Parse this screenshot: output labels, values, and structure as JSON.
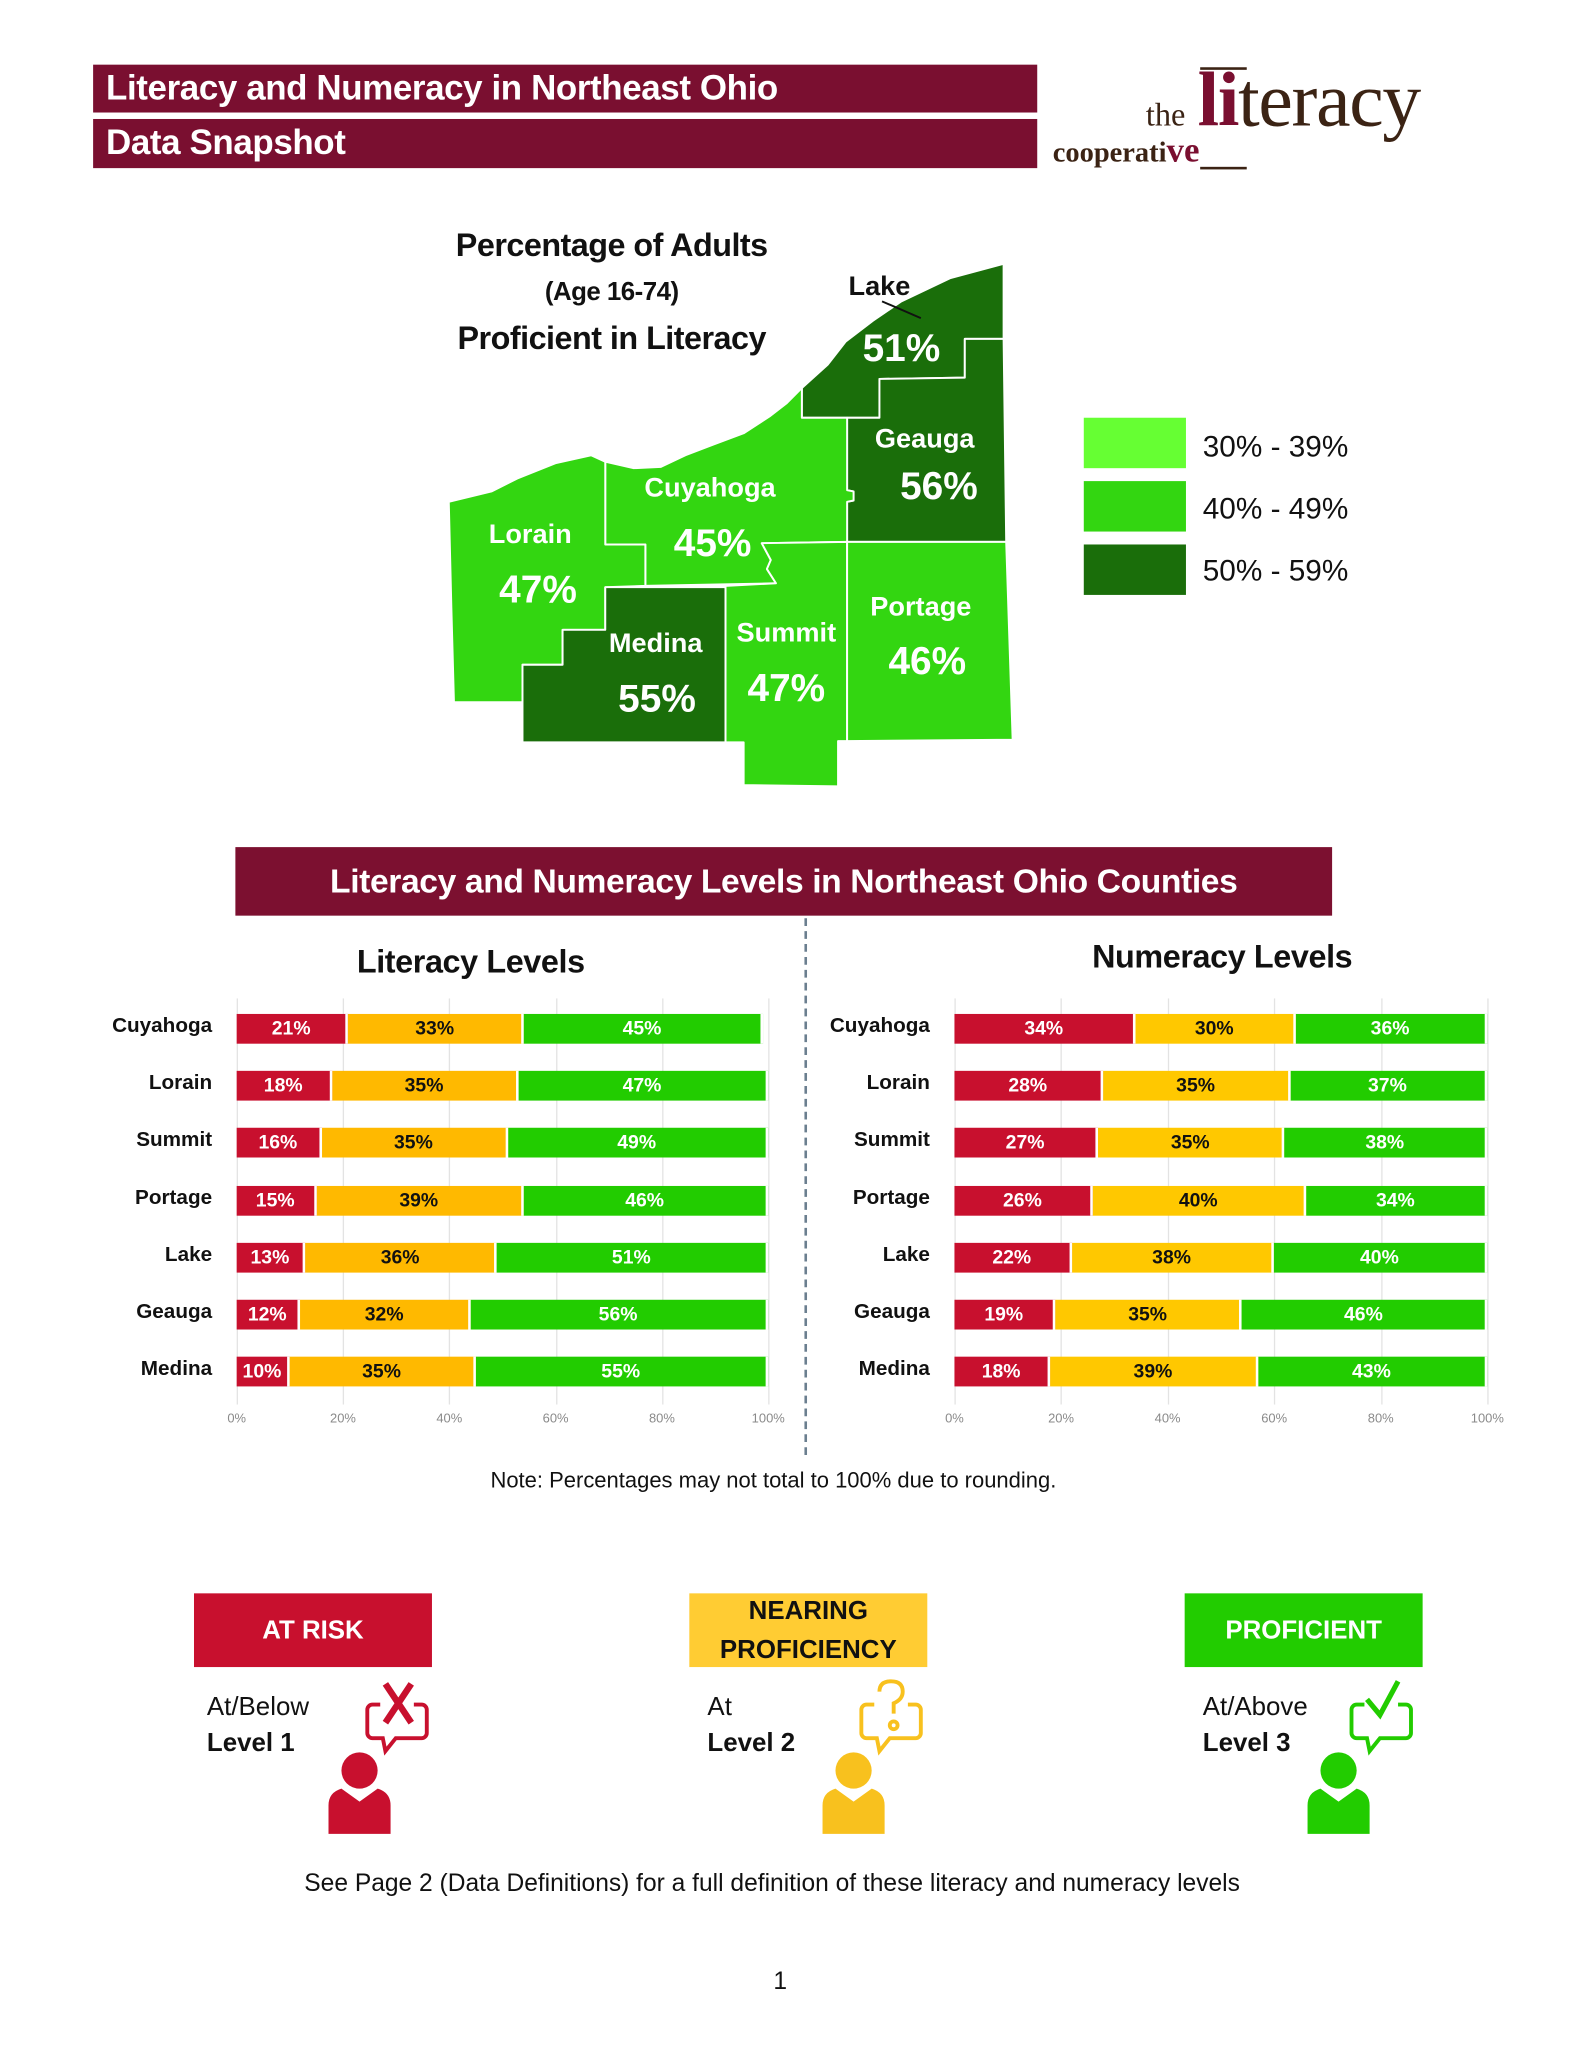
{
  "header": {
    "title": "Literacy and Numeracy in Northeast Ohio",
    "subtitle": "Data Snapshot",
    "brand_color": "#7a0f30"
  },
  "logo": {
    "the": "the",
    "li": "li",
    "teracy": "teracy",
    "cooperati": "cooperati",
    "ve": "ve"
  },
  "map": {
    "title_line1": "Percentage of Adults",
    "title_line2": "(Age 16-74)",
    "title_line3": "Proficient in Literacy",
    "counties": [
      {
        "name": "Lake",
        "pct": "51%",
        "band": 2
      },
      {
        "name": "Geauga",
        "pct": "56%",
        "band": 2
      },
      {
        "name": "Cuyahoga",
        "pct": "45%",
        "band": 1
      },
      {
        "name": "Lorain",
        "pct": "47%",
        "band": 1
      },
      {
        "name": "Medina",
        "pct": "55%",
        "band": 2
      },
      {
        "name": "Summit",
        "pct": "47%",
        "band": 1
      },
      {
        "name": "Portage",
        "pct": "46%",
        "band": 1
      }
    ],
    "legend": [
      {
        "label": "30% - 39%",
        "color": "#66ff33"
      },
      {
        "label": "40% - 49%",
        "color": "#33d611"
      },
      {
        "label": "50% - 59%",
        "color": "#1a6e0a"
      }
    ]
  },
  "banner": "Literacy and Numeracy Levels in Northeast Ohio Counties",
  "chart_data": [
    {
      "type": "bar",
      "stacked": true,
      "orientation": "horizontal",
      "title": "Literacy Levels",
      "categories": [
        "Cuyahoga",
        "Lorain",
        "Summit",
        "Portage",
        "Lake",
        "Geauga",
        "Medina"
      ],
      "series": [
        {
          "values": [
            21,
            18,
            16,
            15,
            13,
            12,
            10
          ],
          "color": "#c8102e",
          "text_color": "#ffffff"
        },
        {
          "values": [
            33,
            35,
            35,
            39,
            36,
            32,
            35
          ],
          "color": "#ffb900",
          "text_color": "#111111"
        },
        {
          "values": [
            45,
            47,
            49,
            46,
            51,
            56,
            55
          ],
          "color": "#22cc00",
          "text_color": "#ffffff"
        }
      ],
      "xlim": [
        0,
        100
      ],
      "xticks": [
        "0%",
        "20%",
        "40%",
        "60%",
        "80%",
        "100%"
      ],
      "grid": true
    },
    {
      "type": "bar",
      "stacked": true,
      "orientation": "horizontal",
      "title": "Numeracy Levels",
      "categories": [
        "Cuyahoga",
        "Lorain",
        "Summit",
        "Portage",
        "Lake",
        "Geauga",
        "Medina"
      ],
      "series": [
        {
          "values": [
            34,
            28,
            27,
            26,
            22,
            19,
            18
          ],
          "color": "#c8102e",
          "text_color": "#ffffff"
        },
        {
          "values": [
            30,
            35,
            35,
            40,
            38,
            35,
            39
          ],
          "color": "#ffc800",
          "text_color": "#111111"
        },
        {
          "values": [
            36,
            37,
            38,
            34,
            40,
            46,
            43
          ],
          "color": "#22cc00",
          "text_color": "#ffffff"
        }
      ],
      "xlim": [
        0,
        100
      ],
      "xticks": [
        "0%",
        "20%",
        "40%",
        "60%",
        "80%",
        "100%"
      ],
      "grid": true
    }
  ],
  "note": "Note: Percentages may not total to 100% due to rounding.",
  "levels": [
    {
      "label": "AT RISK",
      "desc1": "At/Below",
      "desc2": "Level 1",
      "color": "#c8102e",
      "icon": "x-speech-bubble-icon"
    },
    {
      "label": "NEARING PROFICIENCY",
      "desc1": "At",
      "desc2": "Level 2",
      "color": "#ffcc33",
      "icon": "question-speech-bubble-icon"
    },
    {
      "label": "PROFICIENT",
      "desc1": "At/Above",
      "desc2": "Level 3",
      "color": "#22cc00",
      "icon": "check-speech-bubble-icon"
    }
  ],
  "footer": "See Page 2 (Data Definitions) for a full definition of these literacy and numeracy levels",
  "page_number": "1"
}
